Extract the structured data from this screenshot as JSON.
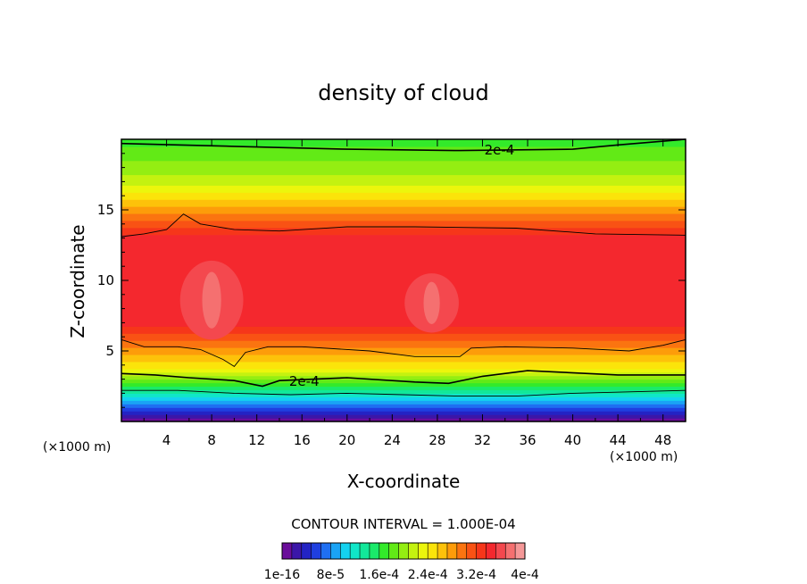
{
  "chart_data": {
    "type": "heatmap",
    "title": "density of cloud",
    "xlabel": "X-coordinate",
    "ylabel": "Z-coordinate",
    "x_unit": "(×1000 m)",
    "xlim": [
      0,
      50
    ],
    "ylim": [
      0,
      20
    ],
    "x_ticks": [
      4,
      8,
      12,
      16,
      20,
      24,
      28,
      32,
      36,
      40,
      44,
      48
    ],
    "y_ticks": [
      5,
      10,
      15
    ],
    "contour_interval_label": "CONTOUR INTERVAL = 1.000E-04",
    "contour_labels": [
      {
        "text": "2e-4",
        "x": 33.5,
        "z": 19.3
      },
      {
        "text": "2e-4",
        "x": 16.2,
        "z": 2.9
      }
    ],
    "colorbar": {
      "colors": [
        "#6a0d9a",
        "#3b16a8",
        "#2323c4",
        "#1f3fe0",
        "#1f6ff2",
        "#1aa3f5",
        "#14d2f0",
        "#10e6c8",
        "#12e89a",
        "#1aea6a",
        "#33ea2a",
        "#62ea16",
        "#94ee12",
        "#c4f210",
        "#ecf60c",
        "#fbe40a",
        "#fdc20a",
        "#fd9c0a",
        "#fb7410",
        "#f95214",
        "#f6361a",
        "#f4282e",
        "#f4484e",
        "#f57070",
        "#f59898"
      ],
      "tick_labels": [
        "1e-16",
        "8e-5",
        "1.6e-4",
        "2.4e-4",
        "3.2e-4",
        "4e-4"
      ]
    },
    "level_profile": [
      {
        "z": 0.0,
        "level": 0
      },
      {
        "z": 0.5,
        "level": 1
      },
      {
        "z": 1.0,
        "level": 3
      },
      {
        "z": 1.5,
        "level": 5
      },
      {
        "z": 2.0,
        "level": 7
      },
      {
        "z": 2.5,
        "level": 9
      },
      {
        "z": 3.0,
        "level": 11
      },
      {
        "z": 3.5,
        "level": 13
      },
      {
        "z": 4.0,
        "level": 15
      },
      {
        "z": 5.0,
        "level": 17
      },
      {
        "z": 6.0,
        "level": 19
      },
      {
        "z": 7.0,
        "level": 21
      },
      {
        "z": 13.0,
        "level": 21
      },
      {
        "z": 14.0,
        "level": 19
      },
      {
        "z": 15.0,
        "level": 17
      },
      {
        "z": 16.0,
        "level": 15
      },
      {
        "z": 17.0,
        "level": 13
      },
      {
        "z": 18.0,
        "level": 12
      },
      {
        "z": 19.0,
        "level": 11
      },
      {
        "z": 20.0,
        "level": 10
      }
    ],
    "contour_lines": [
      {
        "value": "2e-4",
        "points": [
          [
            0,
            19.7
          ],
          [
            10,
            19.5
          ],
          [
            20,
            19.3
          ],
          [
            30,
            19.2
          ],
          [
            40,
            19.3
          ],
          [
            44,
            19.6
          ],
          [
            50,
            20.0
          ]
        ]
      },
      {
        "value": "",
        "points": [
          [
            0,
            13.1
          ],
          [
            2,
            13.3
          ],
          [
            4,
            13.6
          ],
          [
            5.5,
            14.7
          ],
          [
            7,
            14.0
          ],
          [
            10,
            13.6
          ],
          [
            14,
            13.5
          ],
          [
            20,
            13.8
          ],
          [
            26,
            13.8
          ],
          [
            35,
            13.7
          ],
          [
            42,
            13.3
          ],
          [
            50,
            13.2
          ]
        ]
      },
      {
        "value": "",
        "points": [
          [
            0,
            5.8
          ],
          [
            2,
            5.3
          ],
          [
            5,
            5.3
          ],
          [
            7,
            5.1
          ],
          [
            9,
            4.4
          ],
          [
            10,
            3.9
          ],
          [
            11,
            4.9
          ],
          [
            13,
            5.3
          ],
          [
            16,
            5.3
          ],
          [
            22,
            5.0
          ],
          [
            26,
            4.6
          ],
          [
            30,
            4.6
          ],
          [
            31,
            5.2
          ],
          [
            34,
            5.3
          ],
          [
            40,
            5.2
          ],
          [
            45,
            5.0
          ],
          [
            48,
            5.4
          ],
          [
            50,
            5.8
          ]
        ]
      },
      {
        "value": "2e-4",
        "points": [
          [
            0,
            3.4
          ],
          [
            3,
            3.3
          ],
          [
            6,
            3.1
          ],
          [
            10,
            2.9
          ],
          [
            12.5,
            2.5
          ],
          [
            14,
            2.9
          ],
          [
            20,
            3.1
          ],
          [
            26,
            2.8
          ],
          [
            29,
            2.7
          ],
          [
            32,
            3.2
          ],
          [
            36,
            3.6
          ],
          [
            44,
            3.3
          ],
          [
            50,
            3.3
          ]
        ]
      },
      {
        "value": "",
        "points": [
          [
            0,
            2.2
          ],
          [
            5,
            2.2
          ],
          [
            10,
            2.0
          ],
          [
            15,
            1.9
          ],
          [
            20,
            2.0
          ],
          [
            25,
            1.9
          ],
          [
            30,
            1.8
          ],
          [
            35,
            1.8
          ],
          [
            40,
            2.0
          ],
          [
            45,
            2.1
          ],
          [
            50,
            2.2
          ]
        ]
      }
    ],
    "maxima": [
      {
        "x": 8,
        "z": 8.6,
        "rx": 1.4,
        "rz": 2.0,
        "level": 23
      },
      {
        "x": 27.5,
        "z": 8.4,
        "rx": 1.2,
        "rz": 1.5,
        "level": 23
      }
    ]
  }
}
